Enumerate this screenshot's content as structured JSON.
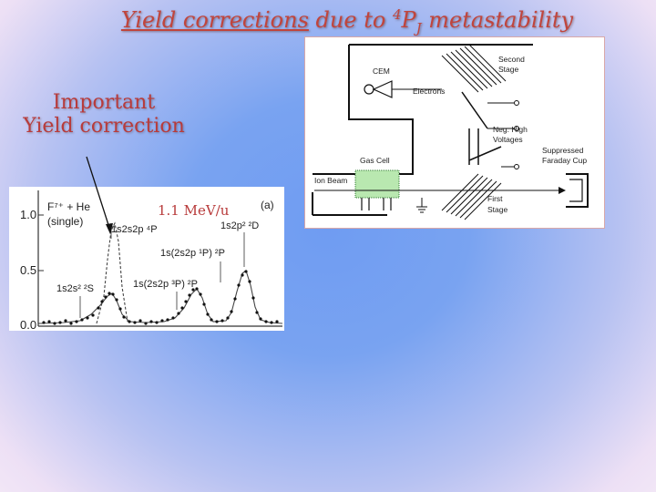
{
  "title": {
    "emph": "Yield corrections",
    "pre": "due to",
    "sup": "4",
    "letter": "P",
    "sub": "J",
    "post": "metastability"
  },
  "callout": {
    "line1": "Important",
    "line2": "Yield correction"
  },
  "spectrum": {
    "energy": "1.1 MeV/u",
    "panel": "(a)",
    "reaction_line1": "F⁷⁺ + He",
    "reaction_line2": "(single)",
    "y_ticks": [
      "1.0",
      "0.5",
      "0.0"
    ],
    "peaks": [
      {
        "label": "1s2s² ²S"
      },
      {
        "label": "1s2s2p ⁴P"
      },
      {
        "label": "1s(2s2p ³P) ²P"
      },
      {
        "label": "1s(2s2p ¹P) ²P"
      },
      {
        "label": "1s2p² ²D"
      }
    ]
  },
  "apparatus": {
    "labels": {
      "cem": "CEM",
      "electrons": "Electrons",
      "second_stage_1": "Second",
      "second_stage_2": "Stage",
      "neg_high_1": "Neg. High",
      "neg_high_2": "Voltages",
      "gas_cell": "Gas Cell",
      "ion_beam": "Ion Beam",
      "faraday_1": "Suppressed",
      "faraday_2": "Faraday Cup",
      "first_stage_1": "First",
      "first_stage_2": "Stage"
    }
  }
}
